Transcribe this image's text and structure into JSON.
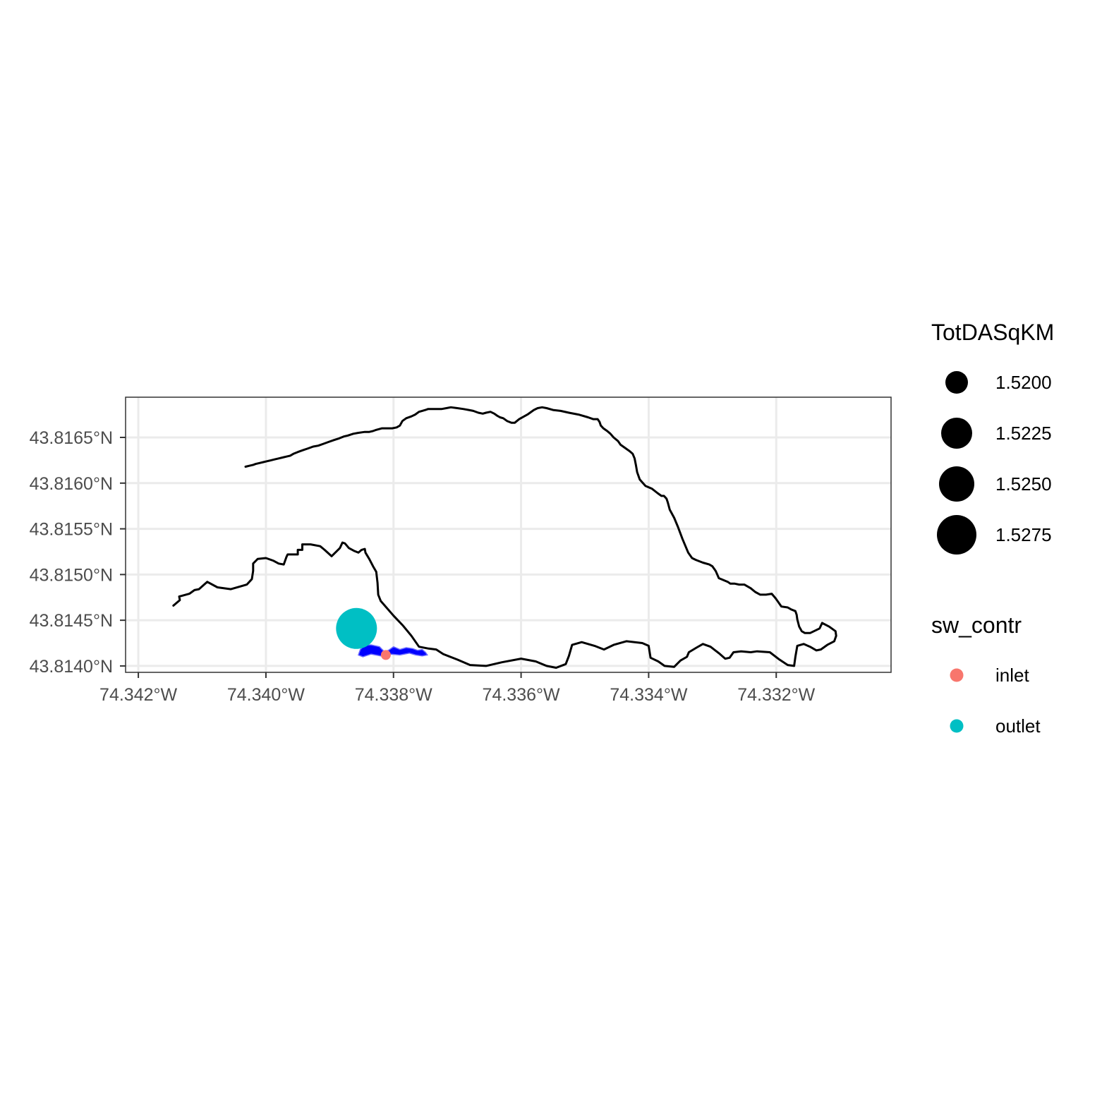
{
  "chart_data": {
    "type": "map",
    "title": "",
    "x_axis": {
      "range": [
        -74.3422,
        -74.3302
      ],
      "ticks": [
        -74.342,
        -74.34,
        -74.338,
        -74.336,
        -74.334,
        -74.332
      ],
      "tick_labels": [
        "74.342°W",
        "74.340°W",
        "74.338°W",
        "74.336°W",
        "74.334°W",
        "74.332°W"
      ]
    },
    "y_axis": {
      "range": [
        43.81393,
        43.81694
      ],
      "ticks": [
        43.814,
        43.8145,
        43.815,
        43.8155,
        43.816,
        43.8165
      ],
      "tick_labels": [
        "43.8140°N",
        "43.8145°N",
        "43.8150°N",
        "43.8155°N",
        "43.8160°N",
        "43.8165°N"
      ]
    },
    "grid": true,
    "flowline": {
      "color": "#000000",
      "coordinates": [
        [
          -74.34145,
          43.81466
        ],
        [
          -74.34135,
          43.81472
        ],
        [
          -74.34136,
          43.81476
        ],
        [
          -74.3412,
          43.81479
        ],
        [
          -74.34112,
          43.81483
        ],
        [
          -74.34105,
          43.81484
        ],
        [
          -74.34092,
          43.81492
        ],
        [
          -74.34076,
          43.81486
        ],
        [
          -74.34055,
          43.81484
        ],
        [
          -74.3404,
          43.81487
        ],
        [
          -74.3403,
          43.81489
        ],
        [
          -74.34022,
          43.81495
        ],
        [
          -74.3402,
          43.81504
        ],
        [
          -74.3402,
          43.81512
        ],
        [
          -74.34013,
          43.81517
        ],
        [
          -74.34,
          43.81518
        ],
        [
          -74.33988,
          43.81515
        ],
        [
          -74.3398,
          43.81512
        ],
        [
          -74.33972,
          43.81511
        ],
        [
          -74.33968,
          43.81519
        ],
        [
          -74.33966,
          43.81522
        ],
        [
          -74.3395,
          43.81522
        ],
        [
          -74.3395,
          43.81527
        ],
        [
          -74.33943,
          43.81527
        ],
        [
          -74.33943,
          43.81533
        ],
        [
          -74.3393,
          43.81533
        ],
        [
          -74.33915,
          43.81531
        ],
        [
          -74.33908,
          43.81527
        ],
        [
          -74.33897,
          43.8152
        ],
        [
          -74.33884,
          43.81529
        ],
        [
          -74.3388,
          43.81535
        ],
        [
          -74.33876,
          43.81534
        ],
        [
          -74.3387,
          43.81529
        ],
        [
          -74.33862,
          43.81526
        ],
        [
          -74.33855,
          43.81524
        ],
        [
          -74.3385,
          43.81527
        ],
        [
          -74.33845,
          43.81528
        ],
        [
          -74.33844,
          43.81524
        ],
        [
          -74.33838,
          43.81517
        ],
        [
          -74.33832,
          43.81509
        ],
        [
          -74.33827,
          43.81503
        ],
        [
          -74.33825,
          43.81491
        ],
        [
          -74.33824,
          43.81478
        ],
        [
          -74.3382,
          43.81471
        ],
        [
          -74.338,
          43.81455
        ],
        [
          -74.33785,
          43.81444
        ],
        [
          -74.33772,
          43.81433
        ],
        [
          -74.3376,
          43.81421
        ],
        [
          -74.33745,
          43.81419
        ],
        [
          -74.33733,
          43.81418
        ],
        [
          -74.33722,
          43.81413
        ],
        [
          -74.337,
          43.81407
        ],
        [
          -74.3368,
          43.81401
        ],
        [
          -74.33655,
          43.814
        ],
        [
          -74.3363,
          43.81404
        ],
        [
          -74.336,
          43.81408
        ],
        [
          -74.33577,
          43.81405
        ],
        [
          -74.3356,
          43.814
        ],
        [
          -74.33545,
          43.81398
        ],
        [
          -74.3353,
          43.81402
        ],
        [
          -74.33525,
          43.81411
        ],
        [
          -74.3352,
          43.81423
        ],
        [
          -74.33505,
          43.81426
        ],
        [
          -74.33485,
          43.81422
        ],
        [
          -74.3347,
          43.81418
        ],
        [
          -74.33455,
          43.81423
        ],
        [
          -74.33435,
          43.81427
        ],
        [
          -74.3341,
          43.81425
        ],
        [
          -74.334,
          43.81422
        ],
        [
          -74.33397,
          43.81409
        ],
        [
          -74.33385,
          43.81405
        ],
        [
          -74.33375,
          43.814
        ],
        [
          -74.3336,
          43.81399
        ],
        [
          -74.3335,
          43.81406
        ],
        [
          -74.3334,
          43.8141
        ],
        [
          -74.33337,
          43.81415
        ],
        [
          -74.33325,
          43.8142
        ],
        [
          -74.33315,
          43.81424
        ],
        [
          -74.33303,
          43.81421
        ],
        [
          -74.3329,
          43.81414
        ],
        [
          -74.3328,
          43.81408
        ],
        [
          -74.33273,
          43.81409
        ],
        [
          -74.33267,
          43.81415
        ],
        [
          -74.33255,
          43.81416
        ],
        [
          -74.3324,
          43.81415
        ],
        [
          -74.3323,
          43.81416
        ],
        [
          -74.3321,
          43.81415
        ],
        [
          -74.33195,
          43.81407
        ],
        [
          -74.33182,
          43.81401
        ],
        [
          -74.33172,
          43.814
        ],
        [
          -74.3317,
          43.8141
        ],
        [
          -74.33167,
          43.81422
        ],
        [
          -74.33157,
          43.81424
        ],
        [
          -74.33147,
          43.81421
        ],
        [
          -74.33137,
          43.81417
        ],
        [
          -74.3313,
          43.81418
        ],
        [
          -74.3312,
          43.81423
        ],
        [
          -74.33109,
          43.81427
        ],
        [
          -74.33106,
          43.81433
        ],
        [
          -74.33107,
          43.81438
        ],
        [
          -74.33117,
          43.81443
        ],
        [
          -74.33128,
          43.81447
        ],
        [
          -74.33132,
          43.81441
        ],
        [
          -74.33147,
          43.81436
        ],
        [
          -74.33155,
          43.81436
        ],
        [
          -74.3316,
          43.81438
        ],
        [
          -74.33164,
          43.81443
        ],
        [
          -74.33167,
          43.81451
        ],
        [
          -74.33168,
          43.81456
        ],
        [
          -74.3317,
          43.8146
        ],
        [
          -74.33177,
          43.81462
        ],
        [
          -74.33182,
          43.81464
        ],
        [
          -74.33192,
          43.81465
        ],
        [
          -74.33193,
          43.81466
        ],
        [
          -74.33197,
          43.8147
        ],
        [
          -74.33201,
          43.81474
        ],
        [
          -74.33207,
          43.81479
        ],
        [
          -74.33216,
          43.81478
        ],
        [
          -74.33225,
          43.81478
        ],
        [
          -74.33233,
          43.81481
        ],
        [
          -74.3324,
          43.81485
        ],
        [
          -74.3325,
          43.81489
        ],
        [
          -74.33258,
          43.81489
        ],
        [
          -74.33265,
          43.8149
        ],
        [
          -74.33272,
          43.8149
        ],
        [
          -74.33276,
          43.81492
        ],
        [
          -74.3329,
          43.81496
        ],
        [
          -74.33295,
          43.81504
        ],
        [
          -74.333,
          43.81509
        ],
        [
          -74.33305,
          43.81511
        ],
        [
          -74.33315,
          43.81513
        ],
        [
          -74.33326,
          43.81516
        ],
        [
          -74.33332,
          43.81518
        ],
        [
          -74.33338,
          43.81524
        ],
        [
          -74.33347,
          43.81539
        ],
        [
          -74.33354,
          43.81552
        ],
        [
          -74.3336,
          43.81562
        ],
        [
          -74.33367,
          43.81571
        ],
        [
          -74.3337,
          43.81579
        ],
        [
          -74.33372,
          43.81583
        ],
        [
          -74.33376,
          43.81586
        ],
        [
          -74.3338,
          43.81586
        ],
        [
          -74.33386,
          43.81589
        ],
        [
          -74.33395,
          43.81594
        ],
        [
          -74.33405,
          43.81597
        ],
        [
          -74.33414,
          43.81604
        ],
        [
          -74.33418,
          43.81612
        ],
        [
          -74.3342,
          43.8162
        ],
        [
          -74.33422,
          43.81627
        ],
        [
          -74.33425,
          43.81632
        ],
        [
          -74.3343,
          43.81635
        ],
        [
          -74.33444,
          43.81642
        ],
        [
          -74.33448,
          43.81646
        ],
        [
          -74.33455,
          43.8165
        ],
        [
          -74.3346,
          43.81654
        ],
        [
          -74.33465,
          43.81657
        ],
        [
          -74.33471,
          43.8166
        ],
        [
          -74.33475,
          43.81663
        ],
        [
          -74.33477,
          43.81667
        ],
        [
          -74.3348,
          43.8167
        ],
        [
          -74.33487,
          43.8167
        ],
        [
          -74.33495,
          43.81672
        ],
        [
          -74.3351,
          43.81675
        ],
        [
          -74.33525,
          43.81677
        ],
        [
          -74.33538,
          43.81679
        ],
        [
          -74.3355,
          43.8168
        ],
        [
          -74.3356,
          43.81682
        ],
        [
          -74.33567,
          43.81683
        ],
        [
          -74.33574,
          43.81682
        ],
        [
          -74.3358,
          43.8168
        ],
        [
          -74.3359,
          43.81675
        ],
        [
          -74.33603,
          43.8167
        ],
        [
          -74.3361,
          43.81666
        ],
        [
          -74.33615,
          43.81666
        ],
        [
          -74.33622,
          43.81668
        ],
        [
          -74.33628,
          43.81671
        ],
        [
          -74.33633,
          43.81672
        ],
        [
          -74.33638,
          43.81674
        ],
        [
          -74.33642,
          43.81676
        ],
        [
          -74.33648,
          43.81678
        ],
        [
          -74.33655,
          43.81677
        ],
        [
          -74.3366,
          43.81676
        ],
        [
          -74.33667,
          43.81677
        ],
        [
          -74.33675,
          43.81679
        ],
        [
          -74.33682,
          43.8168
        ],
        [
          -74.3369,
          43.81681
        ],
        [
          -74.337,
          43.81682
        ],
        [
          -74.3371,
          43.81683
        ],
        [
          -74.33717,
          43.81682
        ],
        [
          -74.33725,
          43.81681
        ],
        [
          -74.33733,
          43.81681
        ],
        [
          -74.3374,
          43.81681
        ],
        [
          -74.33746,
          43.81681
        ],
        [
          -74.3375,
          43.8168
        ],
        [
          -74.33755,
          43.81679
        ],
        [
          -74.3376,
          43.81678
        ],
        [
          -74.33766,
          43.81675
        ],
        [
          -74.33772,
          43.81673
        ],
        [
          -74.3378,
          43.81671
        ],
        [
          -74.33786,
          43.81668
        ],
        [
          -74.3379,
          43.81663
        ],
        [
          -74.33795,
          43.81661
        ],
        [
          -74.33802,
          43.8166
        ],
        [
          -74.3381,
          43.8166
        ],
        [
          -74.33818,
          43.8166
        ],
        [
          -74.33823,
          43.81659
        ],
        [
          -74.33828,
          43.81658
        ],
        [
          -74.33832,
          43.81657
        ],
        [
          -74.33838,
          43.81656
        ],
        [
          -74.33845,
          43.81656
        ],
        [
          -74.33855,
          43.81655
        ],
        [
          -74.33863,
          43.81654
        ],
        [
          -74.33872,
          43.81652
        ],
        [
          -74.33878,
          43.81651
        ],
        [
          -74.33885,
          43.81649
        ],
        [
          -74.33894,
          43.81647
        ],
        [
          -74.33902,
          43.81645
        ],
        [
          -74.3391,
          43.81643
        ],
        [
          -74.33918,
          43.81641
        ],
        [
          -74.33926,
          43.8164
        ],
        [
          -74.33934,
          43.81638
        ],
        [
          -74.33942,
          43.81636
        ],
        [
          -74.3395,
          43.81634
        ],
        [
          -74.33957,
          43.81632
        ],
        [
          -74.33962,
          43.8163
        ],
        [
          -74.33968,
          43.81629
        ],
        [
          -74.33974,
          43.81628
        ],
        [
          -74.3398,
          43.81627
        ],
        [
          -74.33986,
          43.81626
        ],
        [
          -74.33992,
          43.81625
        ],
        [
          -74.33998,
          43.81624
        ],
        [
          -74.34004,
          43.81623
        ],
        [
          -74.3401,
          43.81622
        ],
        [
          -74.34016,
          43.81621
        ],
        [
          -74.3402,
          43.8162
        ],
        [
          -74.34026,
          43.81619
        ],
        [
          -74.34032,
          43.81618
        ]
      ]
    },
    "catchment_polygon": {
      "color": "#0000ff",
      "coordinates": [
        [
          -74.33855,
          43.81412
        ],
        [
          -74.33852,
          43.81418
        ],
        [
          -74.33845,
          43.81423
        ],
        [
          -74.33835,
          43.81423
        ],
        [
          -74.33822,
          43.81421
        ],
        [
          -74.33815,
          43.81416
        ],
        [
          -74.33808,
          43.81417
        ],
        [
          -74.338,
          43.81421
        ],
        [
          -74.3379,
          43.81418
        ],
        [
          -74.3378,
          43.8142
        ],
        [
          -74.3377,
          43.81419
        ],
        [
          -74.33762,
          43.81417
        ],
        [
          -74.33755,
          43.81418
        ],
        [
          -74.3375,
          43.81415
        ],
        [
          -74.33747,
          43.81412
        ],
        [
          -74.33755,
          43.81411
        ],
        [
          -74.33765,
          43.81412
        ],
        [
          -74.33775,
          43.81414
        ],
        [
          -74.3379,
          43.81412
        ],
        [
          -74.33805,
          43.81413
        ],
        [
          -74.3382,
          43.81411
        ],
        [
          -74.33835,
          43.81413
        ],
        [
          -74.33848,
          43.8141
        ]
      ]
    },
    "points": [
      {
        "category": "outlet",
        "TotDASqKM": 1.5285,
        "lon": -74.33858,
        "lat": 43.81441,
        "color": "#00bfc4"
      },
      {
        "category": "inlet",
        "TotDASqKM": 1.5188,
        "lon": -74.33812,
        "lat": 43.81412,
        "color": "#f8766d"
      }
    ]
  },
  "legend": {
    "position": "right",
    "size": {
      "title": "TotDASqKM",
      "entries": [
        {
          "label": "1.5200",
          "value": 1.52
        },
        {
          "label": "1.5225",
          "value": 1.5225
        },
        {
          "label": "1.5250",
          "value": 1.525
        },
        {
          "label": "1.5275",
          "value": 1.5275
        }
      ]
    },
    "color": {
      "title": "sw_contr",
      "entries": [
        {
          "label": "inlet",
          "color": "#f8766d"
        },
        {
          "label": "outlet",
          "color": "#00bfc4"
        }
      ]
    }
  }
}
